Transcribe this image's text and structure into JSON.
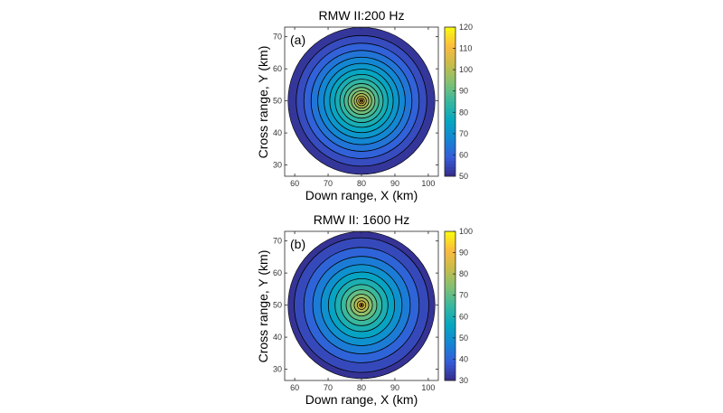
{
  "chart_data": [
    {
      "type": "heatmap",
      "panel_label": "(a)",
      "title": "RMW II:200 Hz",
      "xlabel": "Down range, X (km)",
      "ylabel": "Cross range, Y (km)",
      "xlim": [
        57,
        103
      ],
      "ylim": [
        26.5,
        73
      ],
      "xticks": [
        60,
        70,
        80,
        90,
        100
      ],
      "yticks": [
        30,
        40,
        50,
        60,
        70
      ],
      "colorbar": {
        "range": [
          50,
          120
        ],
        "ticks": [
          50,
          60,
          70,
          80,
          90,
          100,
          110,
          120
        ]
      },
      "domain": {
        "shape": "disk",
        "center": [
          80,
          50
        ],
        "radius": 22
      },
      "contour_levels": [
        54,
        58,
        62,
        66,
        70,
        74,
        78,
        82,
        86,
        90,
        94,
        98,
        102,
        106,
        110,
        114
      ],
      "field": {
        "peak": 120,
        "edge": 50,
        "center": [
          80,
          50
        ]
      },
      "grid": false,
      "colormap": "parula"
    },
    {
      "type": "heatmap",
      "panel_label": "(b)",
      "title": "RMW II: 1600 Hz",
      "xlabel": "Down range, X (km)",
      "ylabel": "Cross range, Y (km)",
      "xlim": [
        57,
        103
      ],
      "ylim": [
        26.5,
        73
      ],
      "xticks": [
        60,
        70,
        80,
        90,
        100
      ],
      "yticks": [
        30,
        40,
        50,
        60,
        70
      ],
      "colorbar": {
        "range": [
          30,
          100
        ],
        "ticks": [
          30,
          40,
          50,
          60,
          70,
          80,
          90,
          100
        ]
      },
      "domain": {
        "shape": "disk",
        "center": [
          80,
          50
        ],
        "radius": 22
      },
      "contour_levels": [
        33,
        38,
        43,
        48,
        53,
        58,
        63,
        68,
        73,
        78,
        83,
        88,
        92,
        95
      ],
      "field": {
        "peak": 100,
        "edge": 30,
        "center": [
          80,
          50
        ]
      },
      "grid": false,
      "colormap": "parula"
    }
  ]
}
